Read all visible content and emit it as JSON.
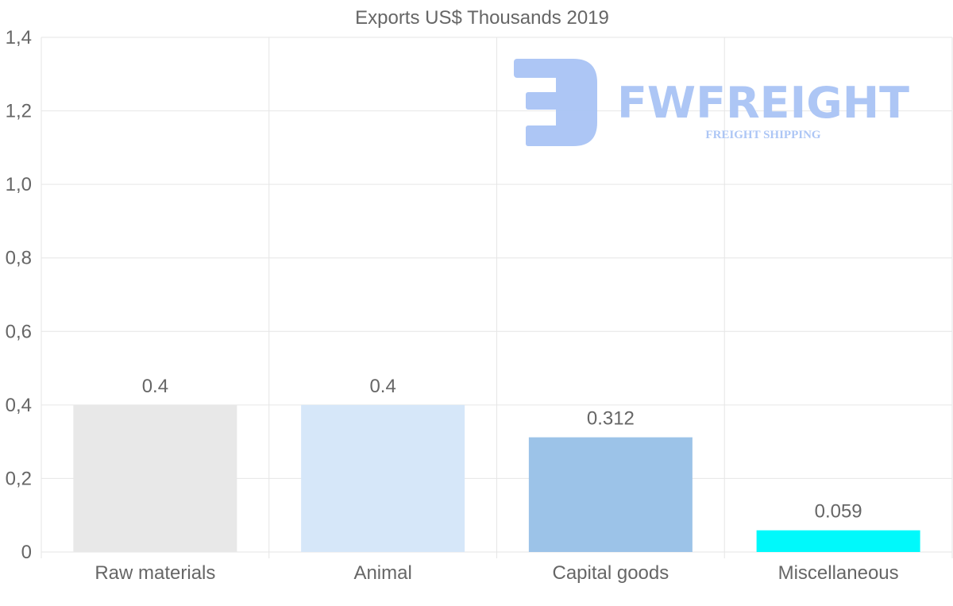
{
  "chart_data": {
    "type": "bar",
    "title": "Exports US$ Thousands 2019",
    "categories": [
      "Raw materials",
      "Animal",
      "Capital goods",
      "Miscellaneous"
    ],
    "values": [
      0.4,
      0.4,
      0.312,
      0.059
    ],
    "value_labels": [
      "0.4",
      "0.4",
      "0.312",
      "0.059"
    ],
    "bar_colors": [
      "#e8e8e8",
      "#d6e7f9",
      "#9cc3e8",
      "#00f9fb"
    ],
    "ylim": [
      0,
      1.4
    ],
    "yticks": [
      0,
      0.2,
      0.4,
      0.6,
      0.8,
      1.0,
      1.2,
      1.4
    ],
    "ytick_labels": [
      "0",
      "0,2",
      "0,4",
      "0,6",
      "0,8",
      "1,0",
      "1,2",
      "1,4"
    ],
    "xlabel": "",
    "ylabel": "",
    "grid": true
  },
  "watermark": {
    "name": "FWFREIGHT",
    "tagline": "FREIGHT SHIPPING",
    "color": "#a9c4f5"
  }
}
